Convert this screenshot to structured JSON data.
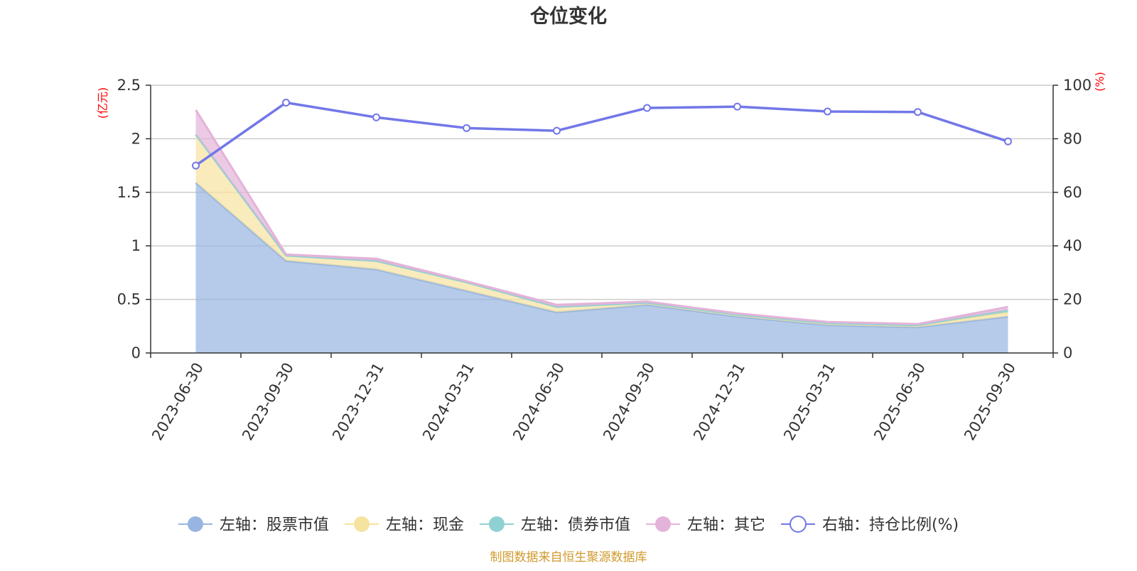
{
  "chart_data": {
    "type": "area",
    "title": "仓位变化",
    "categories": [
      "2023-06-30",
      "2023-09-30",
      "2023-12-31",
      "2024-03-31",
      "2024-06-30",
      "2024-09-30",
      "2024-12-31",
      "2025-03-31",
      "2025-06-30",
      "2025-09-30"
    ],
    "left_axis": {
      "unit": "(亿元)",
      "ylim": [
        0,
        2.5
      ],
      "ticks": [
        0,
        0.5,
        1,
        1.5,
        2,
        2.5
      ],
      "tick_labels": [
        "0",
        "0.5",
        "1",
        "1.5",
        "2",
        "2.5"
      ]
    },
    "right_axis": {
      "unit": "(%)",
      "ylim": [
        0,
        100
      ],
      "ticks": [
        0,
        20,
        40,
        60,
        80,
        100
      ],
      "tick_labels": [
        "0",
        "20",
        "40",
        "60",
        "80",
        "100"
      ]
    },
    "stacked_series": [
      {
        "name": "左轴：股票市值",
        "color": "#97b5e0",
        "values": [
          1.59,
          0.86,
          0.78,
          0.58,
          0.38,
          0.45,
          0.34,
          0.26,
          0.24,
          0.34
        ]
      },
      {
        "name": "左轴：现金",
        "color": "#f6e3a0",
        "values": [
          0.45,
          0.05,
          0.08,
          0.08,
          0.05,
          0.02,
          0.02,
          0.02,
          0.02,
          0.04
        ]
      },
      {
        "name": "左轴：债券市值",
        "color": "#8fd1d3",
        "values": [
          0,
          0,
          0,
          0,
          0,
          0,
          0,
          0,
          0,
          0.02
        ]
      },
      {
        "name": "左轴：其它",
        "color": "#e4b3d9",
        "values": [
          0.23,
          0.01,
          0.02,
          0.01,
          0.02,
          0.01,
          0.01,
          0.01,
          0.01,
          0.03
        ]
      }
    ],
    "line_series": {
      "name": "右轴：持仓比例(%)",
      "color": "#7277e8",
      "values": [
        70,
        93.5,
        88,
        84,
        83,
        91.5,
        92,
        90.2,
        90,
        79
      ]
    }
  },
  "footer": {
    "source": "制图数据来自恒生聚源数据库"
  },
  "colors": {
    "left_unit": "#ff0000",
    "right_unit": "#ff0000",
    "footer": "#d09a2d",
    "axis": "#333333",
    "grid": "#cccccc"
  }
}
